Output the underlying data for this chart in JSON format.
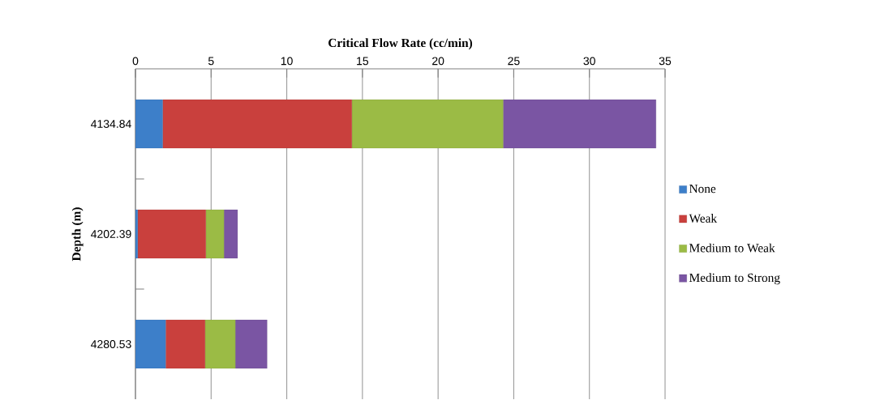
{
  "chart_data": {
    "type": "bar",
    "orientation": "horizontal",
    "stacked": true,
    "xlabel": "Critical Flow Rate (cc/min)",
    "ylabel": "Depth (m)",
    "categories": [
      "4134.84",
      "4202.39",
      "4280.53"
    ],
    "series": [
      {
        "name": "None",
        "color": "#3d7fc9",
        "values": [
          1.8,
          0.15,
          2.0
        ]
      },
      {
        "name": "Weak",
        "color": "#c9403d",
        "values": [
          12.5,
          4.5,
          2.6
        ]
      },
      {
        "name": "Medium to Weak",
        "color": "#9bbb45",
        "values": [
          10.0,
          1.2,
          2.0
        ]
      },
      {
        "name": "Medium to Strong",
        "color": "#7a55a3",
        "values": [
          10.1,
          0.9,
          2.1
        ]
      }
    ],
    "xlim": [
      0,
      35
    ],
    "xticks": [
      0,
      5,
      10,
      15,
      20,
      25,
      30,
      35
    ],
    "grid": "x",
    "legend": "right"
  }
}
